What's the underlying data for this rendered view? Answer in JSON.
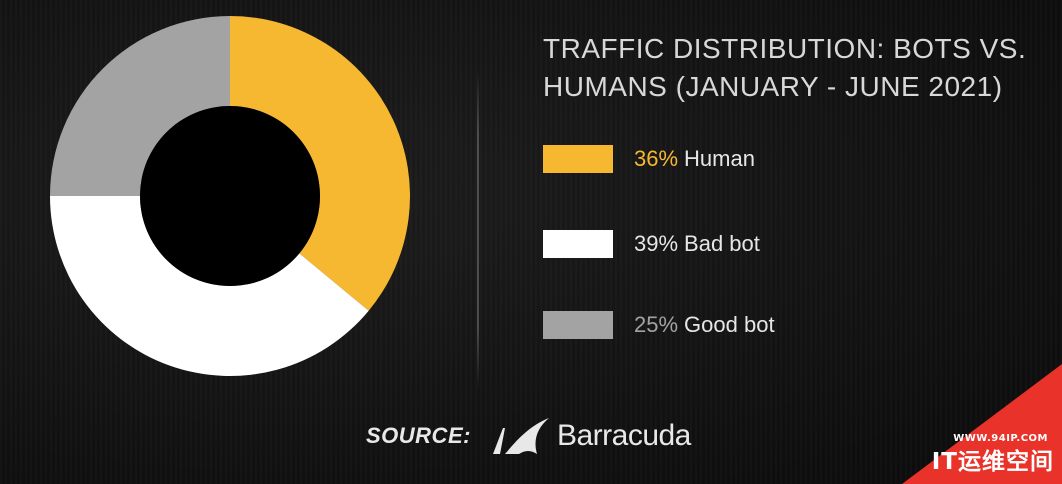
{
  "chart_data": {
    "type": "pie",
    "variant": "donut",
    "title": "TRAFFIC DISTRIBUTION: BOTS VS. HUMANS (JANUARY - JUNE 2021)",
    "legend_position": "right",
    "series": [
      {
        "name": "Human",
        "value": 36,
        "label": "36%",
        "color": "#f7b831"
      },
      {
        "name": "Bad bot",
        "value": 39,
        "label": "39%",
        "color": "#ffffff"
      },
      {
        "name": "Good bot",
        "value": 25,
        "label": "25%",
        "color": "#a3a3a3"
      }
    ]
  },
  "source": {
    "label": "SOURCE:",
    "brand": "Barracuda"
  },
  "watermark": {
    "url": "WWW.94IP.COM",
    "name": "IT运维空间",
    "color": "#e8322a"
  }
}
